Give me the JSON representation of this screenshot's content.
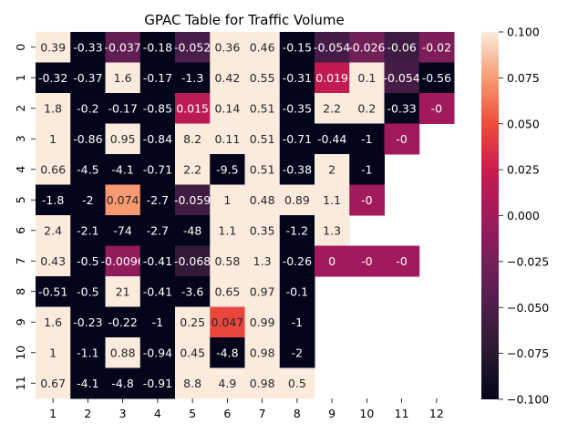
{
  "chart_data": {
    "type": "heatmap",
    "title": "GPAC Table for Traffic Volume",
    "xlabel": "",
    "ylabel": "",
    "x_categories": [
      "1",
      "2",
      "3",
      "4",
      "5",
      "6",
      "7",
      "8",
      "9",
      "10",
      "11",
      "12"
    ],
    "y_categories": [
      "0",
      "1",
      "2",
      "3",
      "4",
      "5",
      "6",
      "7",
      "8",
      "9",
      "10",
      "11"
    ],
    "values": [
      [
        0.39,
        -0.33,
        -0.037,
        -0.18,
        -0.052,
        0.36,
        0.46,
        -0.15,
        -0.054,
        -0.026,
        -0.06,
        -0.02
      ],
      [
        -0.32,
        -0.37,
        1.6,
        -0.17,
        -1.3,
        0.42,
        0.55,
        -0.31,
        0.019,
        0.1,
        -0.054,
        -0.56
      ],
      [
        1.8,
        -0.2,
        -0.17,
        -0.85,
        0.015,
        0.14,
        0.51,
        -0.35,
        2.2,
        0.2,
        -0.33,
        -0.0
      ],
      [
        1,
        -0.86,
        0.95,
        -0.84,
        8.2,
        0.11,
        0.51,
        -0.71,
        -0.44,
        -1,
        -0.0,
        null
      ],
      [
        0.66,
        -4.5,
        -4.1,
        -0.71,
        2.2,
        -9.5,
        0.51,
        -0.38,
        2,
        -1,
        null,
        null
      ],
      [
        -1.8,
        -2,
        0.074,
        -2.7,
        -0.059,
        1,
        0.48,
        0.89,
        1.1,
        -0.0,
        null,
        null
      ],
      [
        2.4,
        -2.1,
        -74,
        -2.7,
        -48,
        1.1,
        0.35,
        -1.2,
        1.3,
        null,
        null,
        null
      ],
      [
        0.43,
        -0.5,
        -0.0096,
        -0.41,
        -0.068,
        0.58,
        1.3,
        -0.26,
        0,
        -0.0,
        -0.0,
        null
      ],
      [
        -0.51,
        -0.5,
        21,
        -0.41,
        -3.6,
        0.65,
        0.97,
        -0.1,
        null,
        null,
        null,
        null
      ],
      [
        1.6,
        -0.23,
        -0.22,
        -1,
        0.25,
        0.047,
        0.99,
        -1,
        null,
        null,
        null,
        null
      ],
      [
        1,
        -1.1,
        0.88,
        -0.94,
        0.45,
        -4.8,
        0.98,
        -2,
        null,
        null,
        null,
        null
      ],
      [
        0.67,
        -4.1,
        -4.8,
        -0.91,
        8.8,
        4.9,
        0.98,
        0.5,
        null,
        null,
        null,
        null
      ]
    ],
    "labels": [
      [
        "0.39",
        "-0.33",
        "-0.037",
        "-0.18",
        "-0.052",
        "0.36",
        "0.46",
        "-0.15",
        "-0.054",
        "-0.026",
        "-0.06",
        "-0.02"
      ],
      [
        "-0.32",
        "-0.37",
        "1.6",
        "-0.17",
        "-1.3",
        "0.42",
        "0.55",
        "-0.31",
        "0.019",
        "0.1",
        "-0.054",
        "-0.56"
      ],
      [
        "1.8",
        "-0.2",
        "-0.17",
        "-0.85",
        "0.015",
        "0.14",
        "0.51",
        "-0.35",
        "2.2",
        "0.2",
        "-0.33",
        "-0"
      ],
      [
        "1",
        "-0.86",
        "0.95",
        "-0.84",
        "8.2",
        "0.11",
        "0.51",
        "-0.71",
        "-0.44",
        "-1",
        "-0",
        ""
      ],
      [
        "0.66",
        "-4.5",
        "-4.1",
        "-0.71",
        "2.2",
        "-9.5",
        "0.51",
        "-0.38",
        "2",
        "-1",
        "",
        ""
      ],
      [
        "-1.8",
        "-2",
        "0.074",
        "-2.7",
        "-0.059",
        "1",
        "0.48",
        "0.89",
        "1.1",
        "-0",
        "",
        ""
      ],
      [
        "2.4",
        "-2.1",
        "-74",
        "-2.7",
        "-48",
        "1.1",
        "0.35",
        "-1.2",
        "1.3",
        "",
        "",
        ""
      ],
      [
        "0.43",
        "-0.5",
        "-0.0096",
        "-0.41",
        "-0.068",
        "0.58",
        "1.3",
        "-0.26",
        "0",
        "-0",
        "-0",
        ""
      ],
      [
        "-0.51",
        "-0.5",
        "21",
        "-0.41",
        "-3.6",
        "0.65",
        "0.97",
        "-0.1",
        "",
        "",
        "",
        ""
      ],
      [
        "1.6",
        "-0.23",
        "-0.22",
        "-1",
        "0.25",
        "0.047",
        "0.99",
        "-1",
        "",
        "",
        "",
        ""
      ],
      [
        "1",
        "-1.1",
        "0.88",
        "-0.94",
        "0.45",
        "-4.8",
        "0.98",
        "-2",
        "",
        "",
        "",
        ""
      ],
      [
        "0.67",
        "-4.1",
        "-4.8",
        "-0.91",
        "8.8",
        "4.9",
        "0.98",
        "0.5",
        "",
        "",
        "",
        ""
      ]
    ],
    "color_range": [
      -0.1,
      0.1
    ],
    "colormap": "rocket",
    "colorbar_ticks": [
      "0.100",
      "0.075",
      "0.050",
      "0.025",
      "0.000",
      "−0.025",
      "−0.050",
      "−0.075",
      "−0.100"
    ],
    "grid": false,
    "legend": "colorbar-right"
  }
}
